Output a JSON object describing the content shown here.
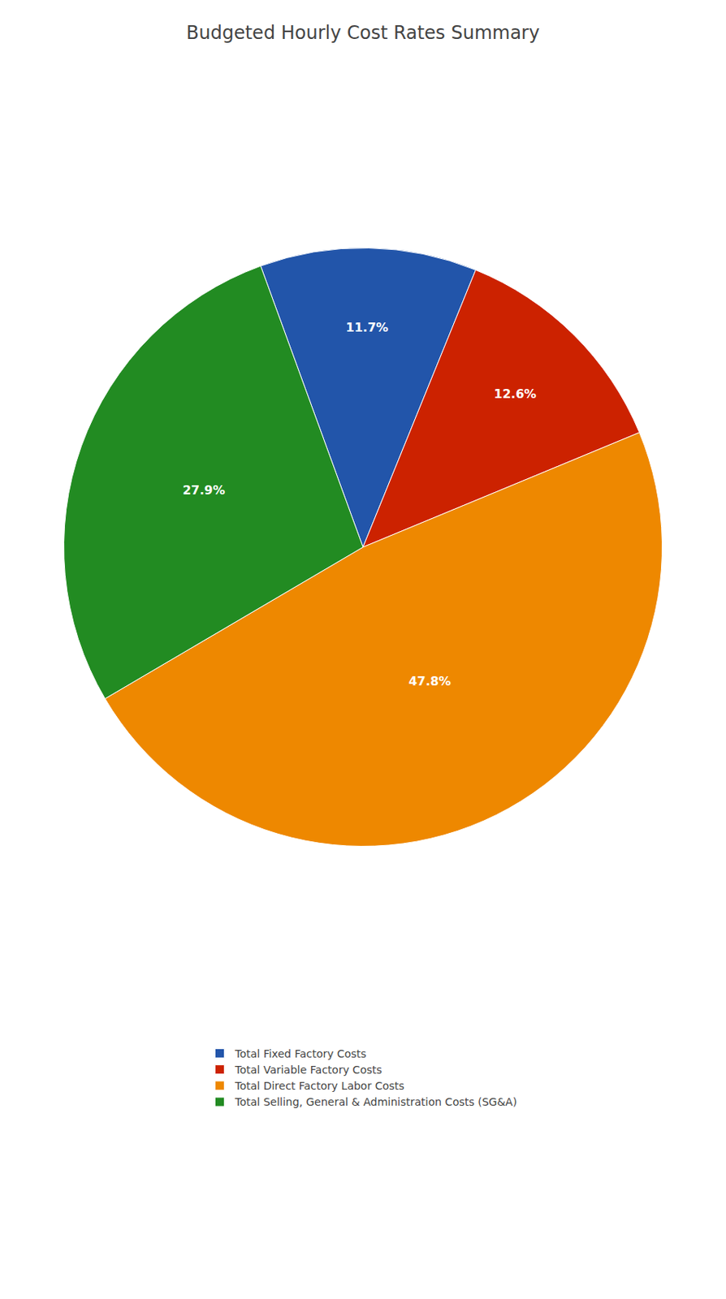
{
  "chart_data": {
    "type": "pie",
    "title": "Budgeted Hourly Cost Rates Summary",
    "categories": [
      "Total Fixed Factory Costs",
      "Total Variable Factory Costs",
      "Total Direct Factory Labor Costs",
      "Total Selling, General & Administration Costs (SG&A)"
    ],
    "values": [
      11.7,
      12.6,
      47.8,
      27.9
    ],
    "value_labels": [
      "11.7%",
      "12.6%",
      "47.8%",
      "27.9%"
    ],
    "colors": [
      "#2255AA",
      "#CC2200",
      "#EE8800",
      "#228B22"
    ],
    "data_labels": true,
    "legend": "bottom"
  }
}
